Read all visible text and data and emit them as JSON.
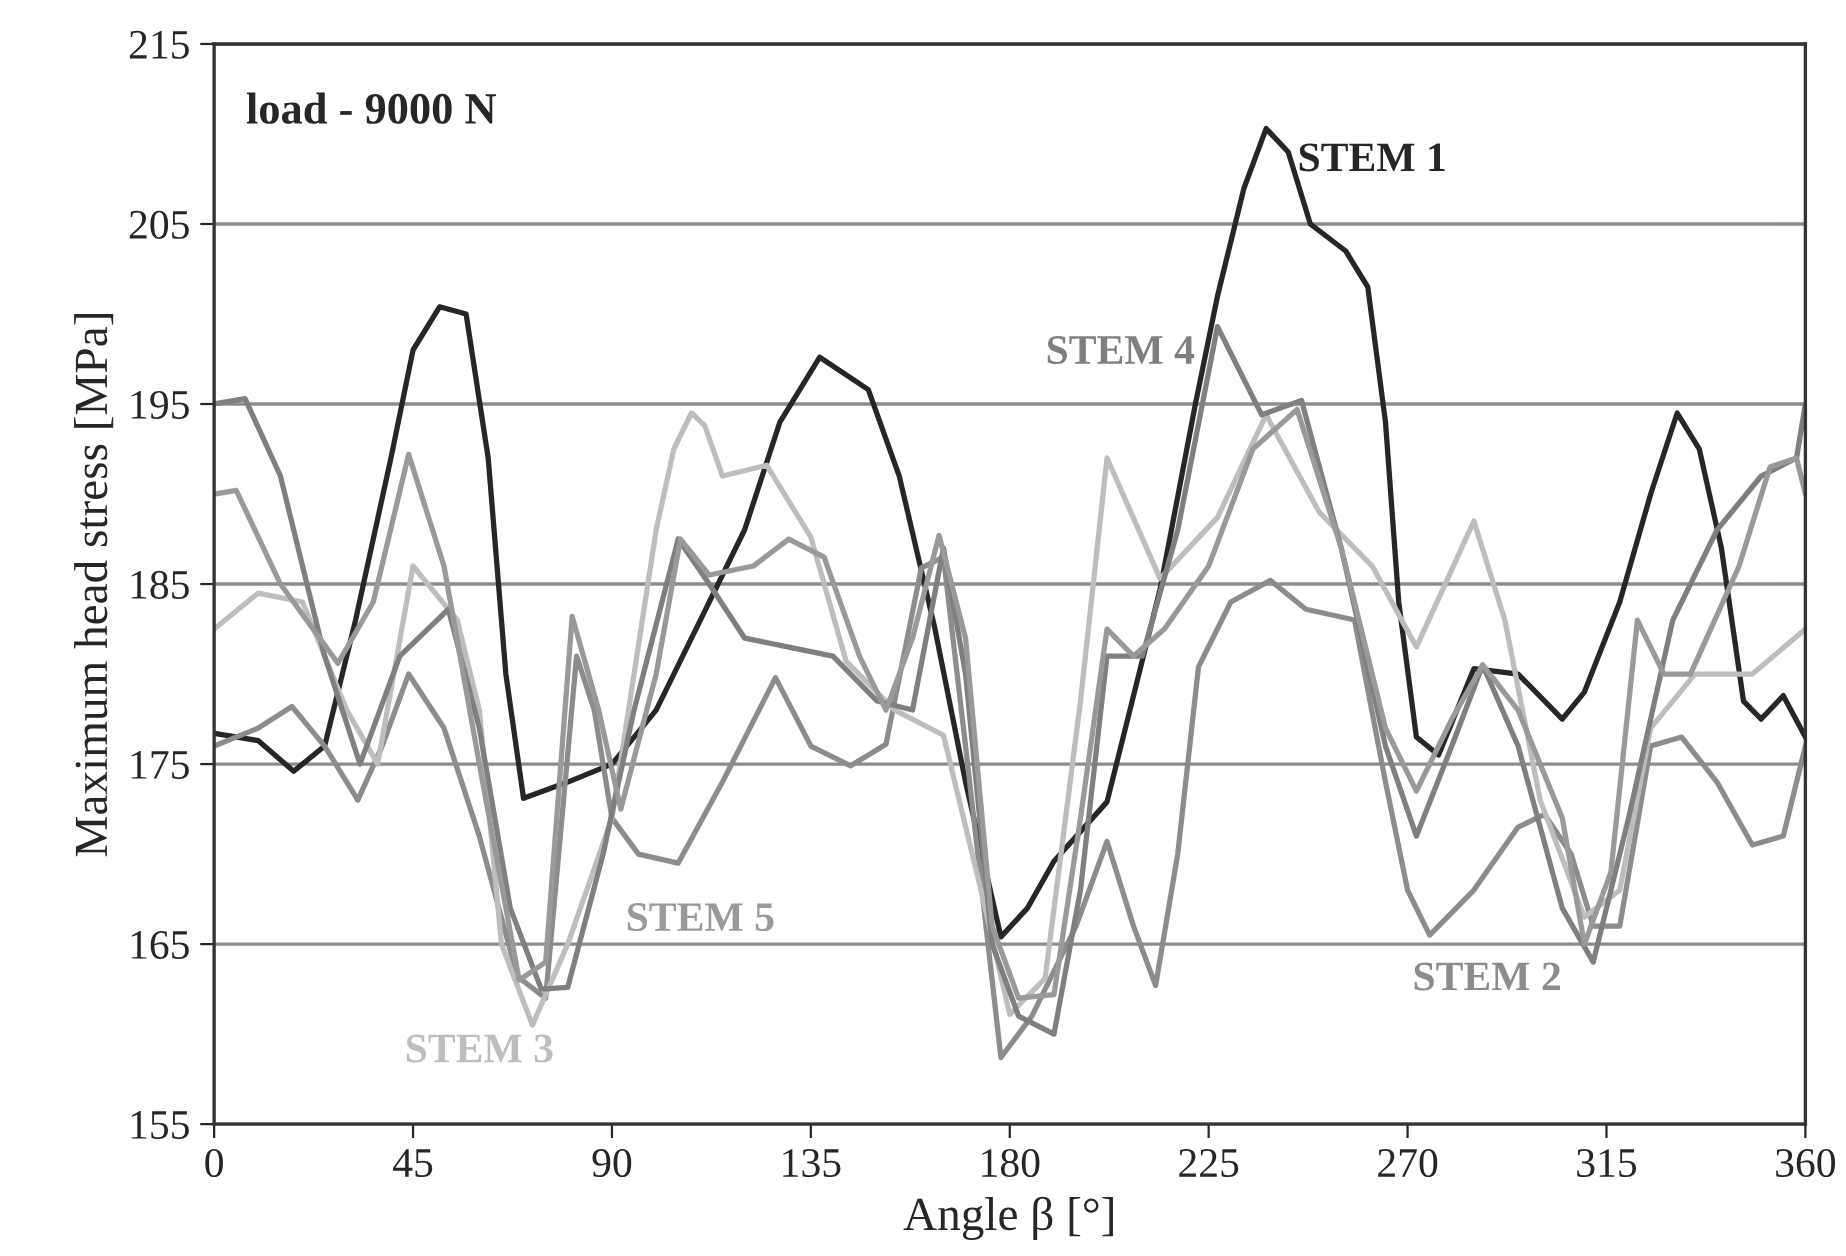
{
  "chart_data": {
    "type": "line",
    "title": "load - 9000 N",
    "xlabel": "Angle β [°]",
    "ylabel": "Maximum head stress [MPa]",
    "xlim": [
      0,
      360
    ],
    "xticks": [
      0,
      45,
      90,
      135,
      180,
      225,
      270,
      315,
      360
    ],
    "ylim": [
      155,
      215
    ],
    "yticks": [
      155,
      165,
      175,
      185,
      195,
      205,
      215
    ],
    "grid": "y",
    "legend": false,
    "marker": "none",
    "line_style": "solid",
    "series": [
      {
        "name": "STEM 1",
        "color": "#262626",
        "x": [
          0,
          10,
          18,
          25,
          32,
          40,
          45,
          51,
          57,
          62,
          66,
          70,
          80,
          90,
          100,
          110,
          120,
          128,
          137,
          148,
          155,
          163,
          170,
          178,
          184,
          190,
          202,
          214,
          222,
          227,
          233,
          238,
          243,
          248,
          256,
          261,
          265,
          268,
          272,
          277,
          285,
          295,
          305,
          310,
          318,
          325,
          331,
          336,
          341,
          346,
          350,
          355,
          360
        ],
        "values": [
          176.7,
          176.3,
          174.6,
          176,
          183,
          192,
          198,
          200.4,
          200,
          192,
          180,
          173.1,
          174,
          175,
          178,
          183,
          188,
          194,
          197.6,
          195.8,
          191,
          182.6,
          174,
          165.4,
          167,
          169.6,
          172.9,
          184.7,
          195,
          201,
          207,
          210.3,
          209,
          205,
          203.5,
          201.5,
          194,
          184,
          176.5,
          175.5,
          180.3,
          180,
          177.5,
          179,
          184,
          190,
          194.5,
          192.5,
          187,
          178.5,
          177.5,
          178.8,
          176.5
        ]
      },
      {
        "name": "STEM 2",
        "color": "#8c8c8c",
        "x": [
          0,
          10,
          17.6,
          25,
          32.5,
          38,
          44,
          52,
          60,
          68.6,
          75,
          82,
          86,
          90,
          96,
          105,
          115,
          127,
          135,
          144,
          152,
          160,
          165,
          170,
          178,
          185,
          195,
          202,
          208,
          213,
          218,
          222.7,
          230,
          239,
          247,
          258,
          265,
          270,
          275,
          285,
          295,
          301,
          307,
          312,
          318,
          325,
          332,
          340,
          348,
          355,
          360
        ],
        "values": [
          176,
          177,
          178.2,
          176,
          173,
          176,
          180,
          177,
          171,
          163.2,
          162,
          181,
          178,
          172,
          170,
          169.5,
          174,
          179.8,
          176,
          174.9,
          176.1,
          185.9,
          186.5,
          176,
          158.7,
          161,
          166,
          170.7,
          166,
          162.7,
          170,
          180.4,
          184,
          185.2,
          183.6,
          183,
          174,
          168,
          165.5,
          168,
          171.5,
          172.2,
          170,
          166,
          166,
          176,
          176.5,
          174,
          170.5,
          171,
          176
        ]
      },
      {
        "name": "STEM 3",
        "color": "#bdbdbd",
        "x": [
          0,
          10,
          20,
          30,
          37,
          45,
          55,
          60,
          65,
          72,
          80,
          90,
          100,
          104,
          108,
          111,
          115,
          125,
          135,
          143,
          154,
          165,
          173,
          180,
          188,
          196,
          202,
          214,
          227,
          238,
          250,
          262,
          272,
          285,
          292,
          300,
          310,
          318,
          325,
          335,
          348,
          360
        ],
        "values": [
          182.5,
          184.5,
          184,
          178,
          175,
          186,
          183,
          178,
          165,
          160.5,
          165,
          172,
          188,
          192.5,
          194.5,
          193.8,
          191,
          191.6,
          187.6,
          180.7,
          178,
          176.6,
          168.5,
          161.1,
          163.1,
          178.5,
          192,
          185.3,
          188.7,
          194.4,
          189,
          186,
          181.5,
          188.5,
          183,
          173,
          166.5,
          168,
          177,
          180,
          180,
          182.5
        ]
      },
      {
        "name": "STEM 4",
        "color": "#7f7f7f",
        "x": [
          0,
          7,
          15,
          25,
          33,
          42,
          53,
          60,
          67,
          74,
          80,
          88,
          95,
          105,
          112,
          120,
          130,
          140,
          150,
          158,
          165,
          170,
          176,
          182,
          190,
          196,
          202,
          210,
          218,
          227,
          237,
          246,
          255,
          265,
          272,
          280,
          287,
          295,
          305,
          312,
          320,
          330,
          340,
          350,
          358,
          360
        ],
        "values": [
          195,
          195.3,
          191,
          181,
          175,
          181,
          183.6,
          177,
          167,
          162.5,
          162.6,
          170,
          178,
          187.5,
          185,
          182,
          181.5,
          181,
          178.5,
          178,
          187,
          180,
          165,
          161,
          160,
          168,
          181,
          181,
          188,
          199.3,
          194.4,
          195.2,
          187,
          176,
          171,
          176,
          180.5,
          176,
          167,
          164,
          172,
          183,
          188,
          191,
          192,
          195
        ]
      },
      {
        "name": "STEM 5",
        "color": "#999999",
        "x": [
          0,
          5,
          15,
          28,
          36,
          44,
          52,
          60,
          69,
          75,
          81,
          87,
          92,
          100,
          105.5,
          112,
          122,
          130,
          138,
          146,
          152,
          158,
          164,
          170,
          176,
          182,
          190,
          196,
          202,
          208,
          215,
          225,
          235,
          245,
          255,
          265,
          272,
          280,
          287,
          295,
          305,
          310,
          316,
          322,
          328,
          334,
          345,
          352,
          358,
          360
        ],
        "values": [
          190,
          190.2,
          185,
          180.6,
          184,
          192.2,
          186,
          175,
          163,
          164,
          183.2,
          178,
          172.5,
          180,
          187.5,
          185.5,
          186,
          187.5,
          186.5,
          181,
          178,
          182,
          187.7,
          182,
          166,
          162,
          162.2,
          172,
          182.5,
          181,
          182.5,
          186,
          192.5,
          194.7,
          187,
          177,
          173.5,
          177.5,
          180.5,
          178,
          172,
          165,
          169,
          183,
          180,
          180,
          186,
          191.5,
          192,
          190
        ]
      }
    ]
  }
}
